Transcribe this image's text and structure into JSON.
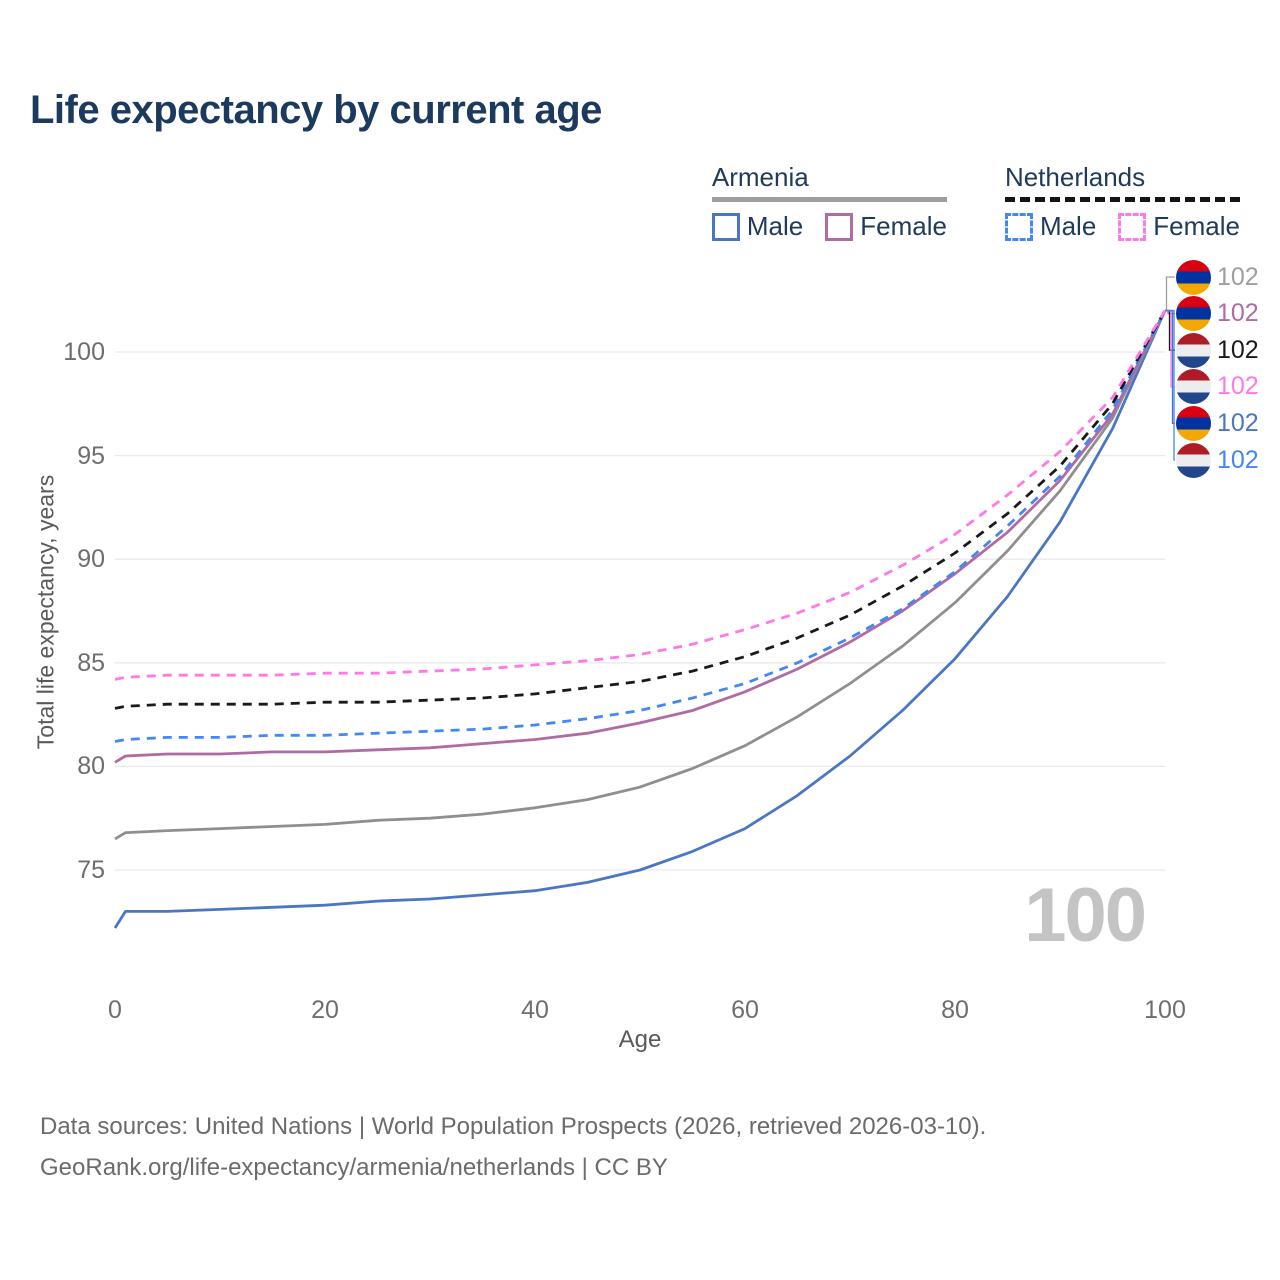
{
  "header": {
    "title": "Life expectancy by current age"
  },
  "legend": {
    "groups": [
      {
        "title": "Armenia",
        "line_style": "solid",
        "underline_color": "#9e9e9e",
        "items": [
          {
            "label": "Male",
            "color": "#4a76c4",
            "dash": false
          },
          {
            "label": "Female",
            "color": "#b16ba4",
            "dash": false
          }
        ]
      },
      {
        "title": "Netherlands",
        "line_style": "dashed",
        "underline_color": "#141414",
        "items": [
          {
            "label": "Male",
            "color": "#4287f5",
            "dash": true
          },
          {
            "label": "Female",
            "color": "#ff78e8",
            "dash": true
          }
        ]
      }
    ]
  },
  "chart_data": {
    "type": "line",
    "title": "Life expectancy by current age",
    "xlabel": "Age",
    "ylabel": "Total life expectancy, years",
    "xlim": [
      0,
      100
    ],
    "ylim": [
      72,
      102
    ],
    "xticks": [
      0,
      20,
      40,
      60,
      80,
      100
    ],
    "yticks": [
      75,
      80,
      85,
      90,
      95,
      100
    ],
    "grid": "horizontal",
    "legend_position": "top-right",
    "x": [
      0,
      1,
      5,
      10,
      15,
      20,
      25,
      30,
      35,
      40,
      45,
      50,
      55,
      60,
      65,
      70,
      75,
      80,
      85,
      90,
      95,
      100
    ],
    "series": [
      {
        "name": "Armenia Male",
        "country": "Armenia",
        "sex": "Male",
        "color": "#4a76c4",
        "dash": false,
        "values": [
          72.2,
          73.0,
          73.0,
          73.1,
          73.2,
          73.3,
          73.5,
          73.6,
          73.8,
          74.0,
          74.4,
          75.0,
          75.9,
          77.0,
          78.6,
          80.5,
          82.7,
          85.2,
          88.2,
          91.8,
          96.3,
          102
        ]
      },
      {
        "name": "Armenia",
        "country": "Armenia",
        "sex": "Both",
        "color": "#8f8f8f",
        "dash": false,
        "values": [
          76.5,
          76.8,
          76.9,
          77.0,
          77.1,
          77.2,
          77.4,
          77.5,
          77.7,
          78.0,
          78.4,
          79.0,
          79.9,
          81.0,
          82.4,
          84.0,
          85.8,
          87.9,
          90.4,
          93.3,
          96.8,
          102
        ]
      },
      {
        "name": "Armenia Female",
        "country": "Armenia",
        "sex": "Female",
        "color": "#b16ba4",
        "dash": false,
        "values": [
          80.2,
          80.5,
          80.6,
          80.6,
          80.7,
          80.7,
          80.8,
          80.9,
          81.1,
          81.3,
          81.6,
          82.1,
          82.7,
          83.6,
          84.7,
          86.0,
          87.5,
          89.3,
          91.3,
          93.8,
          97.0,
          102
        ]
      },
      {
        "name": "Netherlands Male",
        "country": "Netherlands",
        "sex": "Male",
        "color": "#4287f5",
        "dash": true,
        "values": [
          81.2,
          81.3,
          81.4,
          81.4,
          81.5,
          81.5,
          81.6,
          81.7,
          81.8,
          82.0,
          82.3,
          82.7,
          83.3,
          84.0,
          85.0,
          86.2,
          87.6,
          89.4,
          91.6,
          94.0,
          97.2,
          102
        ]
      },
      {
        "name": "Netherlands",
        "country": "Netherlands",
        "sex": "Both",
        "color": "#1a1a1a",
        "dash": true,
        "values": [
          82.8,
          82.9,
          83.0,
          83.0,
          83.0,
          83.1,
          83.1,
          83.2,
          83.3,
          83.5,
          83.8,
          84.1,
          84.6,
          85.3,
          86.2,
          87.3,
          88.7,
          90.3,
          92.2,
          94.5,
          97.5,
          102
        ]
      },
      {
        "name": "Netherlands Female",
        "country": "Netherlands",
        "sex": "Female",
        "color": "#ff78e8",
        "dash": true,
        "values": [
          84.2,
          84.3,
          84.4,
          84.4,
          84.4,
          84.5,
          84.5,
          84.6,
          84.7,
          84.9,
          85.1,
          85.4,
          85.9,
          86.6,
          87.4,
          88.4,
          89.7,
          91.2,
          93.1,
          95.2,
          97.8,
          102
        ]
      }
    ],
    "end_labels": [
      {
        "value": "102",
        "flag": "armenia",
        "color": "#9e9e9e"
      },
      {
        "value": "102",
        "flag": "armenia",
        "color": "#b16ba4"
      },
      {
        "value": "102",
        "flag": "netherlands",
        "color": "#1a1a1a"
      },
      {
        "value": "102",
        "flag": "netherlands",
        "color": "#ff78e8"
      },
      {
        "value": "102",
        "flag": "armenia",
        "color": "#4a76c4"
      },
      {
        "value": "102",
        "flag": "netherlands",
        "color": "#4287f5"
      }
    ],
    "flag_colors": {
      "armenia": [
        "#d90012",
        "#0033a0",
        "#f2a800"
      ],
      "netherlands": [
        "#ae1c28",
        "#ededed",
        "#21468b"
      ]
    },
    "hover_age_label": "100"
  },
  "footer": {
    "line1": "Data sources: United Nations | World Population Prospects (2026, retrieved 2026-03-10).",
    "line2": "GeoRank.org/life-expectancy/armenia/netherlands | CC BY"
  },
  "colors": {
    "title": "#1c3a5e",
    "gridline": "#e9e9e9",
    "tick_text": "#6e6e6e",
    "hover_label": "#c4c4c4"
  }
}
